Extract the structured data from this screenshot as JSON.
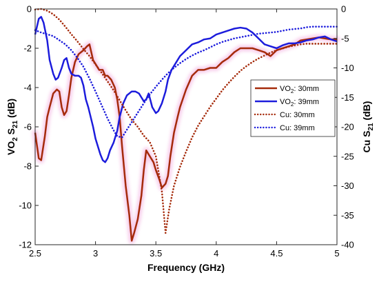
{
  "chart_data": {
    "type": "line",
    "title": "",
    "xlabel": "Frequency (GHz)",
    "ylabel_left": {
      "base": "VO",
      "sub1": "2",
      "mid": " S",
      "sub2": "21",
      "tail": " (dB)"
    },
    "ylabel_right": {
      "base": "Cu S",
      "sub": "21",
      "tail": " (dB)"
    },
    "xlim": [
      2.5,
      5
    ],
    "ylim_left": [
      -12,
      0
    ],
    "ylim_right": [
      -40,
      0
    ],
    "x_ticks": [
      "2.5",
      "3",
      "3.5",
      "4",
      "4.5",
      "5"
    ],
    "y_ticks_left": [
      "0",
      "-2",
      "-4",
      "-6",
      "-8",
      "-10",
      "-12"
    ],
    "y_ticks_right": [
      "0",
      "-5",
      "-10",
      "-15",
      "-20",
      "-25",
      "-30",
      "-35",
      "-40"
    ],
    "grid": false,
    "legend_placement": "right",
    "series": [
      {
        "name": "VO",
        "name_sub": "2",
        "name_tail": ": 30mm",
        "axis": "left",
        "color": "#a52a0a",
        "style": "solid",
        "glow": "#f6c6e8",
        "points": [
          [
            2.5,
            -6.3
          ],
          [
            2.53,
            -7.6
          ],
          [
            2.55,
            -7.7
          ],
          [
            2.58,
            -6.5
          ],
          [
            2.6,
            -5.5
          ],
          [
            2.62,
            -5.0
          ],
          [
            2.65,
            -4.3
          ],
          [
            2.68,
            -4.1
          ],
          [
            2.7,
            -4.2
          ],
          [
            2.72,
            -5.0
          ],
          [
            2.74,
            -5.4
          ],
          [
            2.76,
            -5.2
          ],
          [
            2.78,
            -4.4
          ],
          [
            2.8,
            -3.5
          ],
          [
            2.83,
            -2.7
          ],
          [
            2.86,
            -2.3
          ],
          [
            2.9,
            -2.1
          ],
          [
            2.93,
            -1.9
          ],
          [
            2.95,
            -1.8
          ],
          [
            2.98,
            -2.6
          ],
          [
            3.0,
            -2.8
          ],
          [
            3.03,
            -3.1
          ],
          [
            3.06,
            -3.1
          ],
          [
            3.08,
            -3.4
          ],
          [
            3.1,
            -3.4
          ],
          [
            3.13,
            -3.6
          ],
          [
            3.16,
            -4.0
          ],
          [
            3.18,
            -4.6
          ],
          [
            3.2,
            -5.5
          ],
          [
            3.22,
            -7.0
          ],
          [
            3.25,
            -9.0
          ],
          [
            3.28,
            -10.5
          ],
          [
            3.3,
            -11.8
          ],
          [
            3.32,
            -11.4
          ],
          [
            3.35,
            -10.7
          ],
          [
            3.38,
            -9.5
          ],
          [
            3.4,
            -8.2
          ],
          [
            3.42,
            -7.2
          ],
          [
            3.45,
            -7.5
          ],
          [
            3.48,
            -7.8
          ],
          [
            3.5,
            -8.2
          ],
          [
            3.53,
            -8.7
          ],
          [
            3.55,
            -9.1
          ],
          [
            3.58,
            -8.9
          ],
          [
            3.6,
            -8.5
          ],
          [
            3.62,
            -7.5
          ],
          [
            3.65,
            -6.3
          ],
          [
            3.68,
            -5.5
          ],
          [
            3.7,
            -5.0
          ],
          [
            3.75,
            -4.1
          ],
          [
            3.8,
            -3.4
          ],
          [
            3.85,
            -3.1
          ],
          [
            3.9,
            -3.1
          ],
          [
            3.95,
            -3.0
          ],
          [
            4.0,
            -3.0
          ],
          [
            4.05,
            -2.7
          ],
          [
            4.1,
            -2.5
          ],
          [
            4.15,
            -2.2
          ],
          [
            4.2,
            -2.0
          ],
          [
            4.25,
            -2.0
          ],
          [
            4.3,
            -2.0
          ],
          [
            4.35,
            -2.1
          ],
          [
            4.4,
            -2.2
          ],
          [
            4.45,
            -2.4
          ],
          [
            4.5,
            -2.1
          ],
          [
            4.55,
            -2.0
          ],
          [
            4.6,
            -1.9
          ],
          [
            4.65,
            -1.8
          ],
          [
            4.7,
            -1.6
          ],
          [
            4.75,
            -1.55
          ],
          [
            4.8,
            -1.5
          ],
          [
            4.85,
            -1.45
          ],
          [
            4.9,
            -1.5
          ],
          [
            4.95,
            -1.55
          ],
          [
            5.0,
            -1.55
          ]
        ]
      },
      {
        "name": "VO",
        "name_sub": "2",
        "name_tail": ": 39mm",
        "axis": "left",
        "color": "#1c1cdc",
        "style": "solid",
        "points": [
          [
            2.5,
            -1.3
          ],
          [
            2.53,
            -0.5
          ],
          [
            2.55,
            -0.4
          ],
          [
            2.57,
            -0.7
          ],
          [
            2.6,
            -1.6
          ],
          [
            2.62,
            -2.6
          ],
          [
            2.65,
            -3.3
          ],
          [
            2.67,
            -3.6
          ],
          [
            2.69,
            -3.5
          ],
          [
            2.72,
            -3.0
          ],
          [
            2.74,
            -2.6
          ],
          [
            2.76,
            -2.5
          ],
          [
            2.78,
            -3.0
          ],
          [
            2.8,
            -3.3
          ],
          [
            2.83,
            -3.4
          ],
          [
            2.86,
            -3.4
          ],
          [
            2.88,
            -3.5
          ],
          [
            2.9,
            -3.9
          ],
          [
            2.92,
            -4.6
          ],
          [
            2.94,
            -5.0
          ],
          [
            2.96,
            -5.5
          ],
          [
            2.98,
            -6.0
          ],
          [
            3.0,
            -6.6
          ],
          [
            3.02,
            -7.0
          ],
          [
            3.04,
            -7.4
          ],
          [
            3.06,
            -7.7
          ],
          [
            3.08,
            -7.8
          ],
          [
            3.1,
            -7.6
          ],
          [
            3.12,
            -7.2
          ],
          [
            3.15,
            -6.8
          ],
          [
            3.18,
            -6.2
          ],
          [
            3.2,
            -5.5
          ],
          [
            3.23,
            -4.8
          ],
          [
            3.26,
            -4.4
          ],
          [
            3.3,
            -4.2
          ],
          [
            3.33,
            -4.2
          ],
          [
            3.36,
            -4.3
          ],
          [
            3.38,
            -4.5
          ],
          [
            3.4,
            -4.7
          ],
          [
            3.42,
            -4.6
          ],
          [
            3.44,
            -4.3
          ],
          [
            3.47,
            -5.0
          ],
          [
            3.5,
            -5.3
          ],
          [
            3.52,
            -5.2
          ],
          [
            3.55,
            -4.8
          ],
          [
            3.58,
            -4.2
          ],
          [
            3.6,
            -3.6
          ],
          [
            3.63,
            -3.1
          ],
          [
            3.66,
            -2.8
          ],
          [
            3.7,
            -2.4
          ],
          [
            3.75,
            -2.1
          ],
          [
            3.8,
            -1.8
          ],
          [
            3.85,
            -1.7
          ],
          [
            3.9,
            -1.55
          ],
          [
            3.95,
            -1.5
          ],
          [
            4.0,
            -1.3
          ],
          [
            4.05,
            -1.2
          ],
          [
            4.1,
            -1.1
          ],
          [
            4.15,
            -1.0
          ],
          [
            4.2,
            -0.95
          ],
          [
            4.25,
            -1.0
          ],
          [
            4.3,
            -1.2
          ],
          [
            4.35,
            -1.5
          ],
          [
            4.4,
            -1.8
          ],
          [
            4.45,
            -1.9
          ],
          [
            4.5,
            -2.0
          ],
          [
            4.55,
            -1.85
          ],
          [
            4.6,
            -1.75
          ],
          [
            4.65,
            -1.75
          ],
          [
            4.7,
            -1.7
          ],
          [
            4.75,
            -1.6
          ],
          [
            4.8,
            -1.55
          ],
          [
            4.85,
            -1.45
          ],
          [
            4.9,
            -1.4
          ],
          [
            4.95,
            -1.55
          ],
          [
            5.0,
            -1.65
          ]
        ]
      },
      {
        "name": "Cu",
        "name_sub": "",
        "name_tail": ": 30mm",
        "axis": "right",
        "color": "#a52a0a",
        "style": "dotted",
        "points": [
          [
            2.5,
            -0.1
          ],
          [
            2.55,
            0.0
          ],
          [
            2.6,
            -0.3
          ],
          [
            2.65,
            -0.9
          ],
          [
            2.7,
            -1.8
          ],
          [
            2.75,
            -3.0
          ],
          [
            2.8,
            -4.3
          ],
          [
            2.85,
            -5.5
          ],
          [
            2.9,
            -6.8
          ],
          [
            2.95,
            -8.0
          ],
          [
            3.0,
            -9.4
          ],
          [
            3.05,
            -10.8
          ],
          [
            3.1,
            -12.3
          ],
          [
            3.15,
            -13.8
          ],
          [
            3.2,
            -15.5
          ],
          [
            3.25,
            -17.2
          ],
          [
            3.3,
            -18.8
          ],
          [
            3.35,
            -20.0
          ],
          [
            3.4,
            -21.5
          ],
          [
            3.45,
            -22.6
          ],
          [
            3.5,
            -25.0
          ],
          [
            3.55,
            -31.0
          ],
          [
            3.58,
            -38.0
          ],
          [
            3.61,
            -34.0
          ],
          [
            3.65,
            -30.0
          ],
          [
            3.7,
            -26.8
          ],
          [
            3.75,
            -24.2
          ],
          [
            3.8,
            -21.8
          ],
          [
            3.85,
            -19.8
          ],
          [
            3.9,
            -18.2
          ],
          [
            3.95,
            -16.6
          ],
          [
            4.0,
            -15.2
          ],
          [
            4.05,
            -13.8
          ],
          [
            4.1,
            -12.6
          ],
          [
            4.15,
            -11.5
          ],
          [
            4.2,
            -10.5
          ],
          [
            4.25,
            -9.7
          ],
          [
            4.3,
            -9.0
          ],
          [
            4.35,
            -8.4
          ],
          [
            4.4,
            -7.9
          ],
          [
            4.45,
            -7.4
          ],
          [
            4.5,
            -7.0
          ],
          [
            4.55,
            -6.7
          ],
          [
            4.6,
            -6.4
          ],
          [
            4.65,
            -6.2
          ],
          [
            4.7,
            -6.0
          ],
          [
            4.75,
            -5.9
          ],
          [
            4.8,
            -5.9
          ],
          [
            4.85,
            -5.9
          ],
          [
            4.9,
            -5.9
          ],
          [
            4.95,
            -5.9
          ],
          [
            5.0,
            -5.9
          ]
        ]
      },
      {
        "name": "Cu",
        "name_sub": "",
        "name_tail": ": 39mm",
        "axis": "right",
        "color": "#1c1cdc",
        "style": "dotted",
        "points": [
          [
            2.5,
            -3.6
          ],
          [
            2.55,
            -4.0
          ],
          [
            2.6,
            -4.3
          ],
          [
            2.65,
            -4.6
          ],
          [
            2.7,
            -5.3
          ],
          [
            2.75,
            -6.0
          ],
          [
            2.8,
            -7.0
          ],
          [
            2.85,
            -8.3
          ],
          [
            2.9,
            -9.8
          ],
          [
            2.95,
            -11.8
          ],
          [
            3.0,
            -14.0
          ],
          [
            3.05,
            -16.3
          ],
          [
            3.1,
            -18.6
          ],
          [
            3.15,
            -20.6
          ],
          [
            3.18,
            -21.6
          ],
          [
            3.22,
            -21.8
          ],
          [
            3.25,
            -20.8
          ],
          [
            3.3,
            -19.2
          ],
          [
            3.35,
            -17.6
          ],
          [
            3.4,
            -16.0
          ],
          [
            3.45,
            -14.5
          ],
          [
            3.5,
            -13.2
          ],
          [
            3.55,
            -12.0
          ],
          [
            3.6,
            -10.9
          ],
          [
            3.65,
            -10.0
          ],
          [
            3.7,
            -9.2
          ],
          [
            3.75,
            -8.5
          ],
          [
            3.8,
            -7.9
          ],
          [
            3.85,
            -7.4
          ],
          [
            3.9,
            -7.0
          ],
          [
            3.95,
            -6.5
          ],
          [
            4.0,
            -6.0
          ],
          [
            4.05,
            -5.6
          ],
          [
            4.1,
            -5.3
          ],
          [
            4.15,
            -5.0
          ],
          [
            4.2,
            -4.8
          ],
          [
            4.25,
            -4.6
          ],
          [
            4.3,
            -4.4
          ],
          [
            4.35,
            -4.2
          ],
          [
            4.4,
            -4.1
          ],
          [
            4.45,
            -4.0
          ],
          [
            4.5,
            -3.9
          ],
          [
            4.55,
            -3.7
          ],
          [
            4.6,
            -3.5
          ],
          [
            4.65,
            -3.4
          ],
          [
            4.7,
            -3.3
          ],
          [
            4.75,
            -3.1
          ],
          [
            4.8,
            -3.0
          ],
          [
            4.85,
            -3.0
          ],
          [
            4.9,
            -3.0
          ],
          [
            4.95,
            -3.0
          ],
          [
            5.0,
            -3.0
          ]
        ]
      }
    ]
  }
}
